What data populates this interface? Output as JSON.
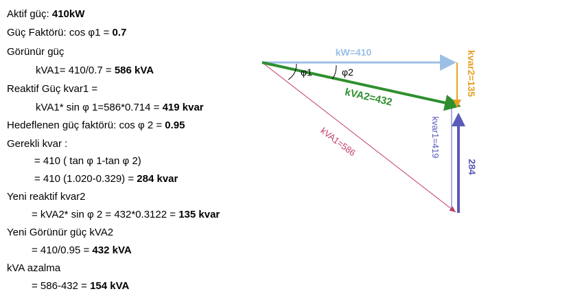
{
  "text_lines": [
    {
      "text": "Aktif güç: ",
      "bold": "410kW"
    },
    {
      "text": "Güç Faktörü: cos φ1 = ",
      "bold": "0.7"
    },
    {
      "text": "Görünür güç"
    },
    {
      "text": "kVA1= 410/0.7 = ",
      "bold": "586 kVA"
    },
    {
      "text": "Reaktif Güç kvar1 ="
    },
    {
      "text": "kVA1* sin φ 1=586*0.714 = ",
      "bold": "419 kvar"
    },
    {
      "text": "Hedeflenen güç faktörü: cos φ 2 = ",
      "bold": "0.95"
    },
    {
      "text": "Gerekli kvar :"
    },
    {
      "text": "= 410 ( tan φ 1-tan φ 2)"
    },
    {
      "text": "= 410 (1.020-0.329) = ",
      "bold": "284 kvar"
    },
    {
      "text": "Yeni reaktif kvar2"
    },
    {
      "text": "= kVA2* sin φ 2 = 432*0.3122 = ",
      "bold": "135 kvar"
    },
    {
      "text": "Yeni Görünür güç kVA2"
    },
    {
      "text": "= 410/0.95 = ",
      "bold": "432 kVA"
    },
    {
      "text": "kVA azalma"
    },
    {
      "text": "= 586-432 = ",
      "bold": "154 kVA"
    }
  ],
  "diagram": {
    "kw": "kW=410",
    "kva2": "kVA2=432",
    "kva1": "kVA1=586",
    "kvar2": "kvar2=135",
    "kvar1": "kvar1=419",
    "needed": "284",
    "phi1": "φ1",
    "phi2": "φ2"
  }
}
